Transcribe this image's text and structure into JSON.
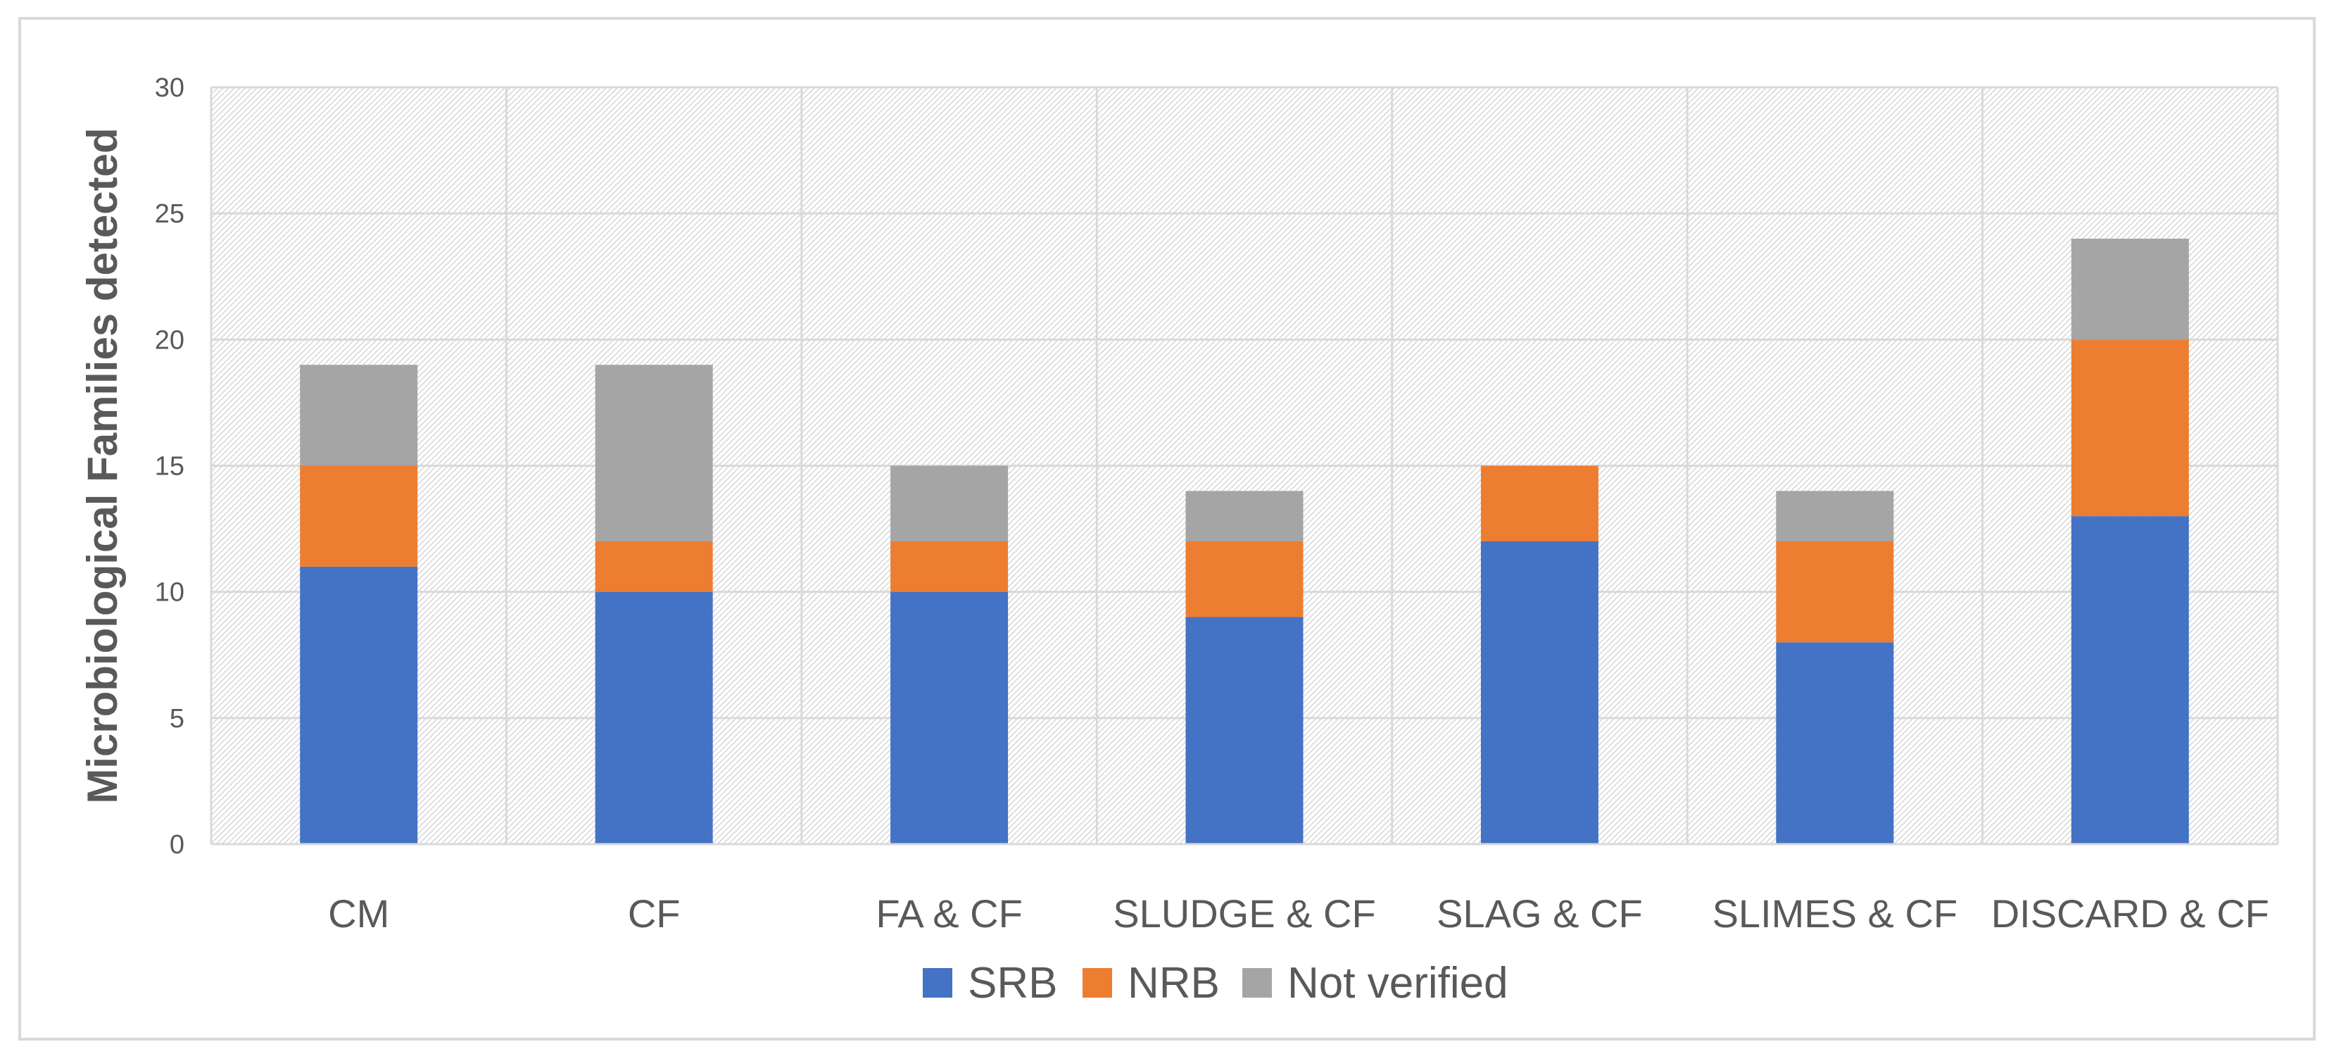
{
  "chart_data": {
    "type": "bar",
    "stacked": true,
    "title": "",
    "xlabel": "",
    "ylabel": "Microbiological Families detected",
    "ylim": [
      0,
      30
    ],
    "yticks": [
      0,
      5,
      10,
      15,
      20,
      25,
      30
    ],
    "grid": true,
    "legend_position": "bottom",
    "categories": [
      "CM",
      "CF",
      "FA & CF",
      "SLUDGE & CF",
      "SLAG & CF",
      "SLIMES & CF",
      "DISCARD & CF"
    ],
    "series": [
      {
        "name": "SRB",
        "color": "#4472C4",
        "values": [
          11,
          10,
          10,
          9,
          12,
          8,
          13
        ]
      },
      {
        "name": "NRB",
        "color": "#ED7D31",
        "values": [
          4,
          2,
          2,
          3,
          3,
          4,
          7
        ]
      },
      {
        "name": "Not verified",
        "color": "#A5A5A5",
        "values": [
          4,
          7,
          3,
          2,
          0,
          2,
          4
        ]
      }
    ]
  }
}
